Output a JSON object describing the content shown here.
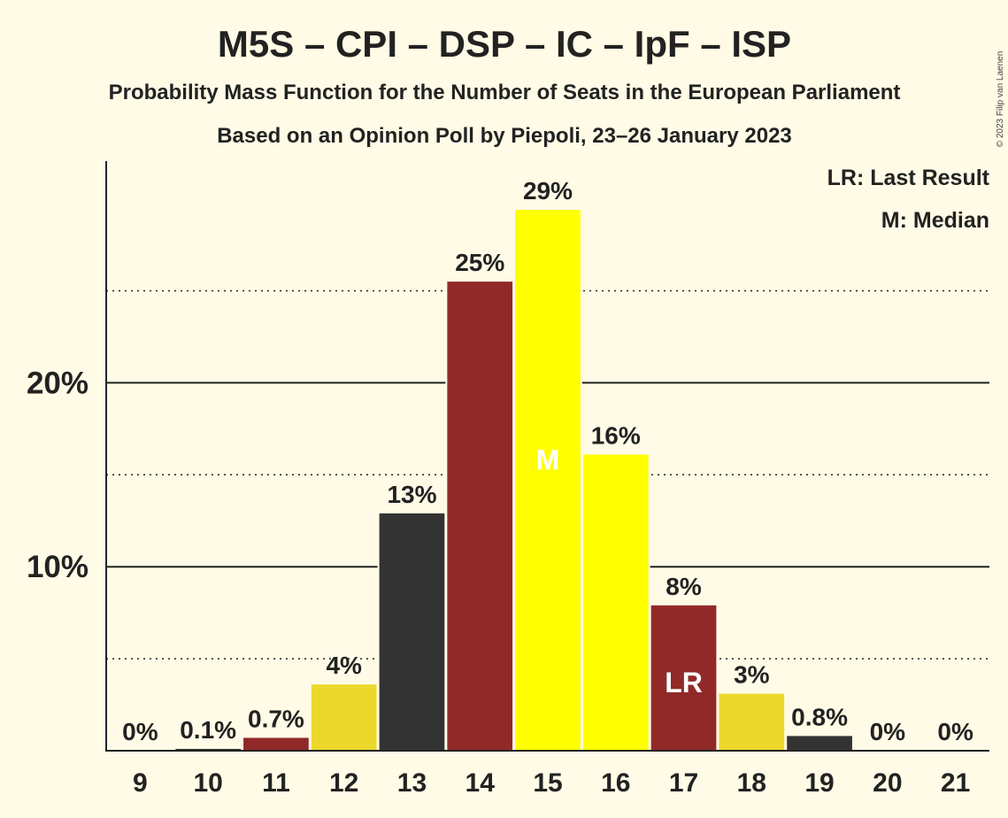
{
  "chart_data": {
    "type": "bar",
    "title": "M5S – CPI – DSP – IC – IpF – ISP",
    "subtitle": "Probability Mass Function for the Number of Seats in the European Parliament",
    "subtitle2": "Based on an Opinion Poll by Piepoli, 23–26 January 2023",
    "copyright": "© 2023 Filip van Laenen",
    "legend": [
      "LR: Last Result",
      "M: Median"
    ],
    "categories": [
      "9",
      "10",
      "11",
      "12",
      "13",
      "14",
      "15",
      "16",
      "17",
      "18",
      "19",
      "20",
      "21"
    ],
    "values": [
      0,
      0.1,
      0.7,
      3.6,
      12.9,
      25.5,
      29.4,
      16.1,
      7.9,
      3.1,
      0.8,
      0,
      0
    ],
    "data_labels": [
      "0%",
      "0.1%",
      "0.7%",
      "4%",
      "13%",
      "25%",
      "29%",
      "16%",
      "8%",
      "3%",
      "0.8%",
      "0%",
      "0%"
    ],
    "bar_colors": [
      "#333333",
      "#333333",
      "#912929",
      "#ecd82a",
      "#333333",
      "#912929",
      "#ffff00",
      "#ffff00",
      "#912929",
      "#ecd82a",
      "#333333",
      "#333333",
      "#333333"
    ],
    "yticks": [
      {
        "value": 10,
        "label": "10%"
      },
      {
        "value": 20,
        "label": "20%"
      }
    ],
    "minor_gridlines": [
      5,
      15,
      25
    ],
    "ylim": [
      0,
      32
    ],
    "markers": [
      {
        "category": "15",
        "label": "M"
      },
      {
        "category": "17",
        "label": "LR"
      }
    ],
    "xlabel": "",
    "ylabel": ""
  }
}
